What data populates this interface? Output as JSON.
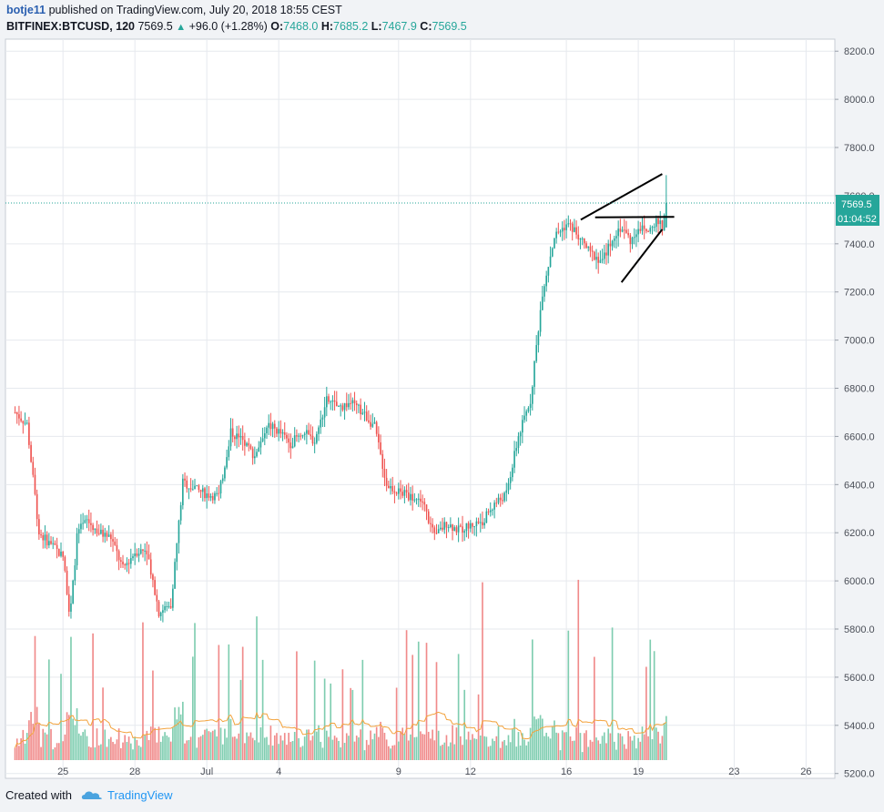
{
  "header": {
    "user": "botje11",
    "published_text": "published on TradingView.com, July 20, 2018 18:55 CEST"
  },
  "symbol_line": {
    "symbol": "BITFINEX:BTCUSD, 120",
    "last": "7569.5",
    "change": "+96.0 (+1.28%)",
    "open_label": "O:",
    "open": "7468.0",
    "high_label": "H:",
    "high": "7685.2",
    "low_label": "L:",
    "low": "7467.9",
    "close_label": "C:",
    "close": "7569.5"
  },
  "price_tag": {
    "price": "7569.5",
    "countdown": "01:04:52",
    "color": "#26a69a"
  },
  "footer": {
    "created_with": "Created with",
    "brand": "TradingView"
  },
  "colors": {
    "up": "#26a69a",
    "down": "#ef5350",
    "vol_up": "#7fcdb0",
    "vol_down": "#f08a8a",
    "ma": "#f3a33d",
    "grid": "#e6e9ee"
  },
  "chart_data": {
    "type": "candlestick",
    "interval_minutes": 120,
    "y_axis": {
      "labels": [
        "8200.0",
        "8000.0",
        "7800.0",
        "7600.0",
        "7400.0",
        "7200.0",
        "7000.0",
        "6800.0",
        "6600.0",
        "6400.0",
        "6200.0",
        "6000.0",
        "5800.0",
        "5600.0",
        "5400.0",
        "5200.0"
      ],
      "values": [
        8200,
        8000,
        7800,
        7600,
        7400,
        7200,
        7000,
        6800,
        6600,
        6400,
        6200,
        6000,
        5800,
        5600,
        5400,
        5200
      ],
      "range": [
        5180,
        8250
      ]
    },
    "x_axis": {
      "labels": [
        "25",
        "28",
        "Jul",
        "4",
        "9",
        "12",
        "16",
        "19",
        "23",
        "26"
      ],
      "day_index": [
        2,
        5,
        8,
        11,
        16,
        19,
        23,
        26,
        30,
        33
      ],
      "range_days": [
        -0.4,
        34.2
      ]
    },
    "price_series_daily": {
      "day": [
        0,
        0.5,
        1,
        1.5,
        2,
        2.3,
        2.6,
        3,
        3.5,
        4,
        4.5,
        5,
        5.5,
        6,
        6.5,
        7,
        7.5,
        8,
        8.5,
        9,
        9.5,
        10,
        10.5,
        11,
        11.5,
        12,
        12.5,
        13,
        13.5,
        14,
        14.5,
        15,
        15.5,
        16,
        16.5,
        17,
        17.5,
        18,
        18.5,
        19,
        19.5,
        20,
        20.5,
        21,
        21.5,
        22,
        22.5,
        23,
        23.3,
        23.6,
        24,
        24.5,
        25,
        25.3,
        25.7,
        26,
        26.4,
        26.8,
        27,
        27.2
      ],
      "close": [
        6700,
        6650,
        6200,
        6150,
        6100,
        5850,
        6200,
        6250,
        6200,
        6180,
        6050,
        6120,
        6130,
        5870,
        5900,
        6410,
        6380,
        6360,
        6350,
        6620,
        6580,
        6520,
        6650,
        6620,
        6570,
        6620,
        6580,
        6750,
        6720,
        6740,
        6700,
        6640,
        6400,
        6370,
        6350,
        6330,
        6180,
        6240,
        6210,
        6230,
        6250,
        6320,
        6360,
        6600,
        6750,
        7200,
        7430,
        7480,
        7460,
        7420,
        7360,
        7330,
        7440,
        7470,
        7410,
        7470,
        7450,
        7490,
        7470,
        7569.5
      ]
    },
    "pattern_lines": [
      {
        "name": "upper trendline",
        "from": {
          "day": 23.6,
          "price": 7500
        },
        "to": {
          "day": 27.0,
          "price": 7690
        }
      },
      {
        "name": "horizontal neckline",
        "from": {
          "day": 24.2,
          "price": 7510
        },
        "to": {
          "day": 27.5,
          "price": 7512
        }
      },
      {
        "name": "lower trendline",
        "from": {
          "day": 25.3,
          "price": 7240
        },
        "to": {
          "day": 27.0,
          "price": 7460
        }
      }
    ],
    "last_price": 7569.5,
    "open": 7468.0,
    "high": 7685.2,
    "low": 7467.9,
    "close": 7569.5,
    "volume_pane": {
      "overlay": "moving average",
      "spikes_days": [
        0.8,
        2.3,
        5.3,
        7.5,
        10.1,
        16.3,
        19.5,
        23.1,
        23.5,
        24.9,
        26.5
      ]
    },
    "grid": true
  }
}
